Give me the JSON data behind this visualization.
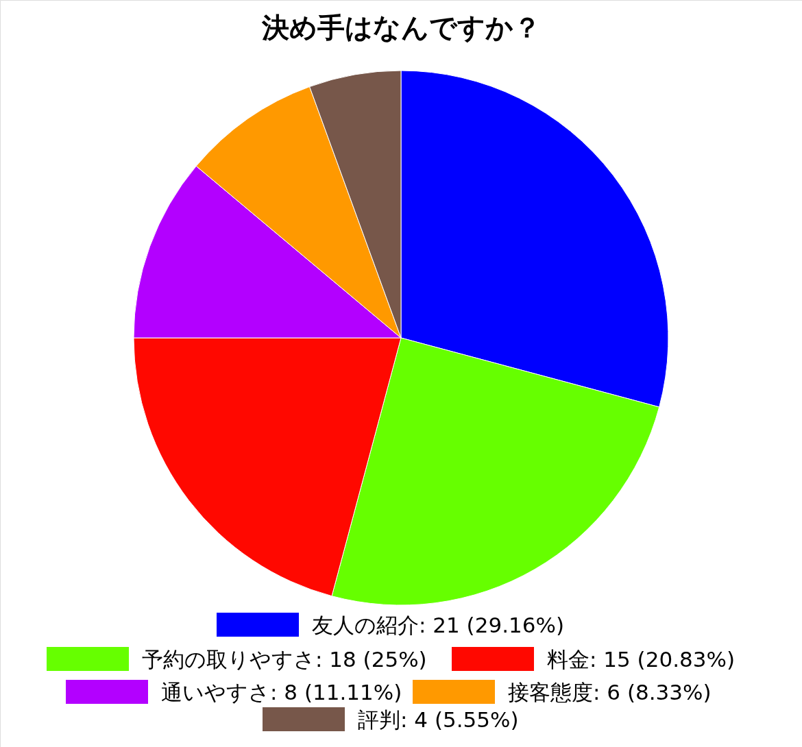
{
  "chart_data": {
    "type": "pie",
    "title": "決め手はなんですか？",
    "categories": [
      "友人の紹介",
      "予約の取りやすさ",
      "料金",
      "通いやすさ",
      "接客態度",
      "評判"
    ],
    "values": [
      21,
      18,
      15,
      8,
      6,
      4
    ],
    "value_labels": [
      "21 (29.16%)",
      "18 (25%)",
      "15 (20.83%)",
      "8 (11.11%)",
      "6 (8.33%)",
      "4 (5.55%)"
    ],
    "colors": [
      "#0000ff",
      "#66ff00",
      "#ff0800",
      "#b300ff",
      "#ff9900",
      "#77574a"
    ],
    "legend": "bottom"
  }
}
